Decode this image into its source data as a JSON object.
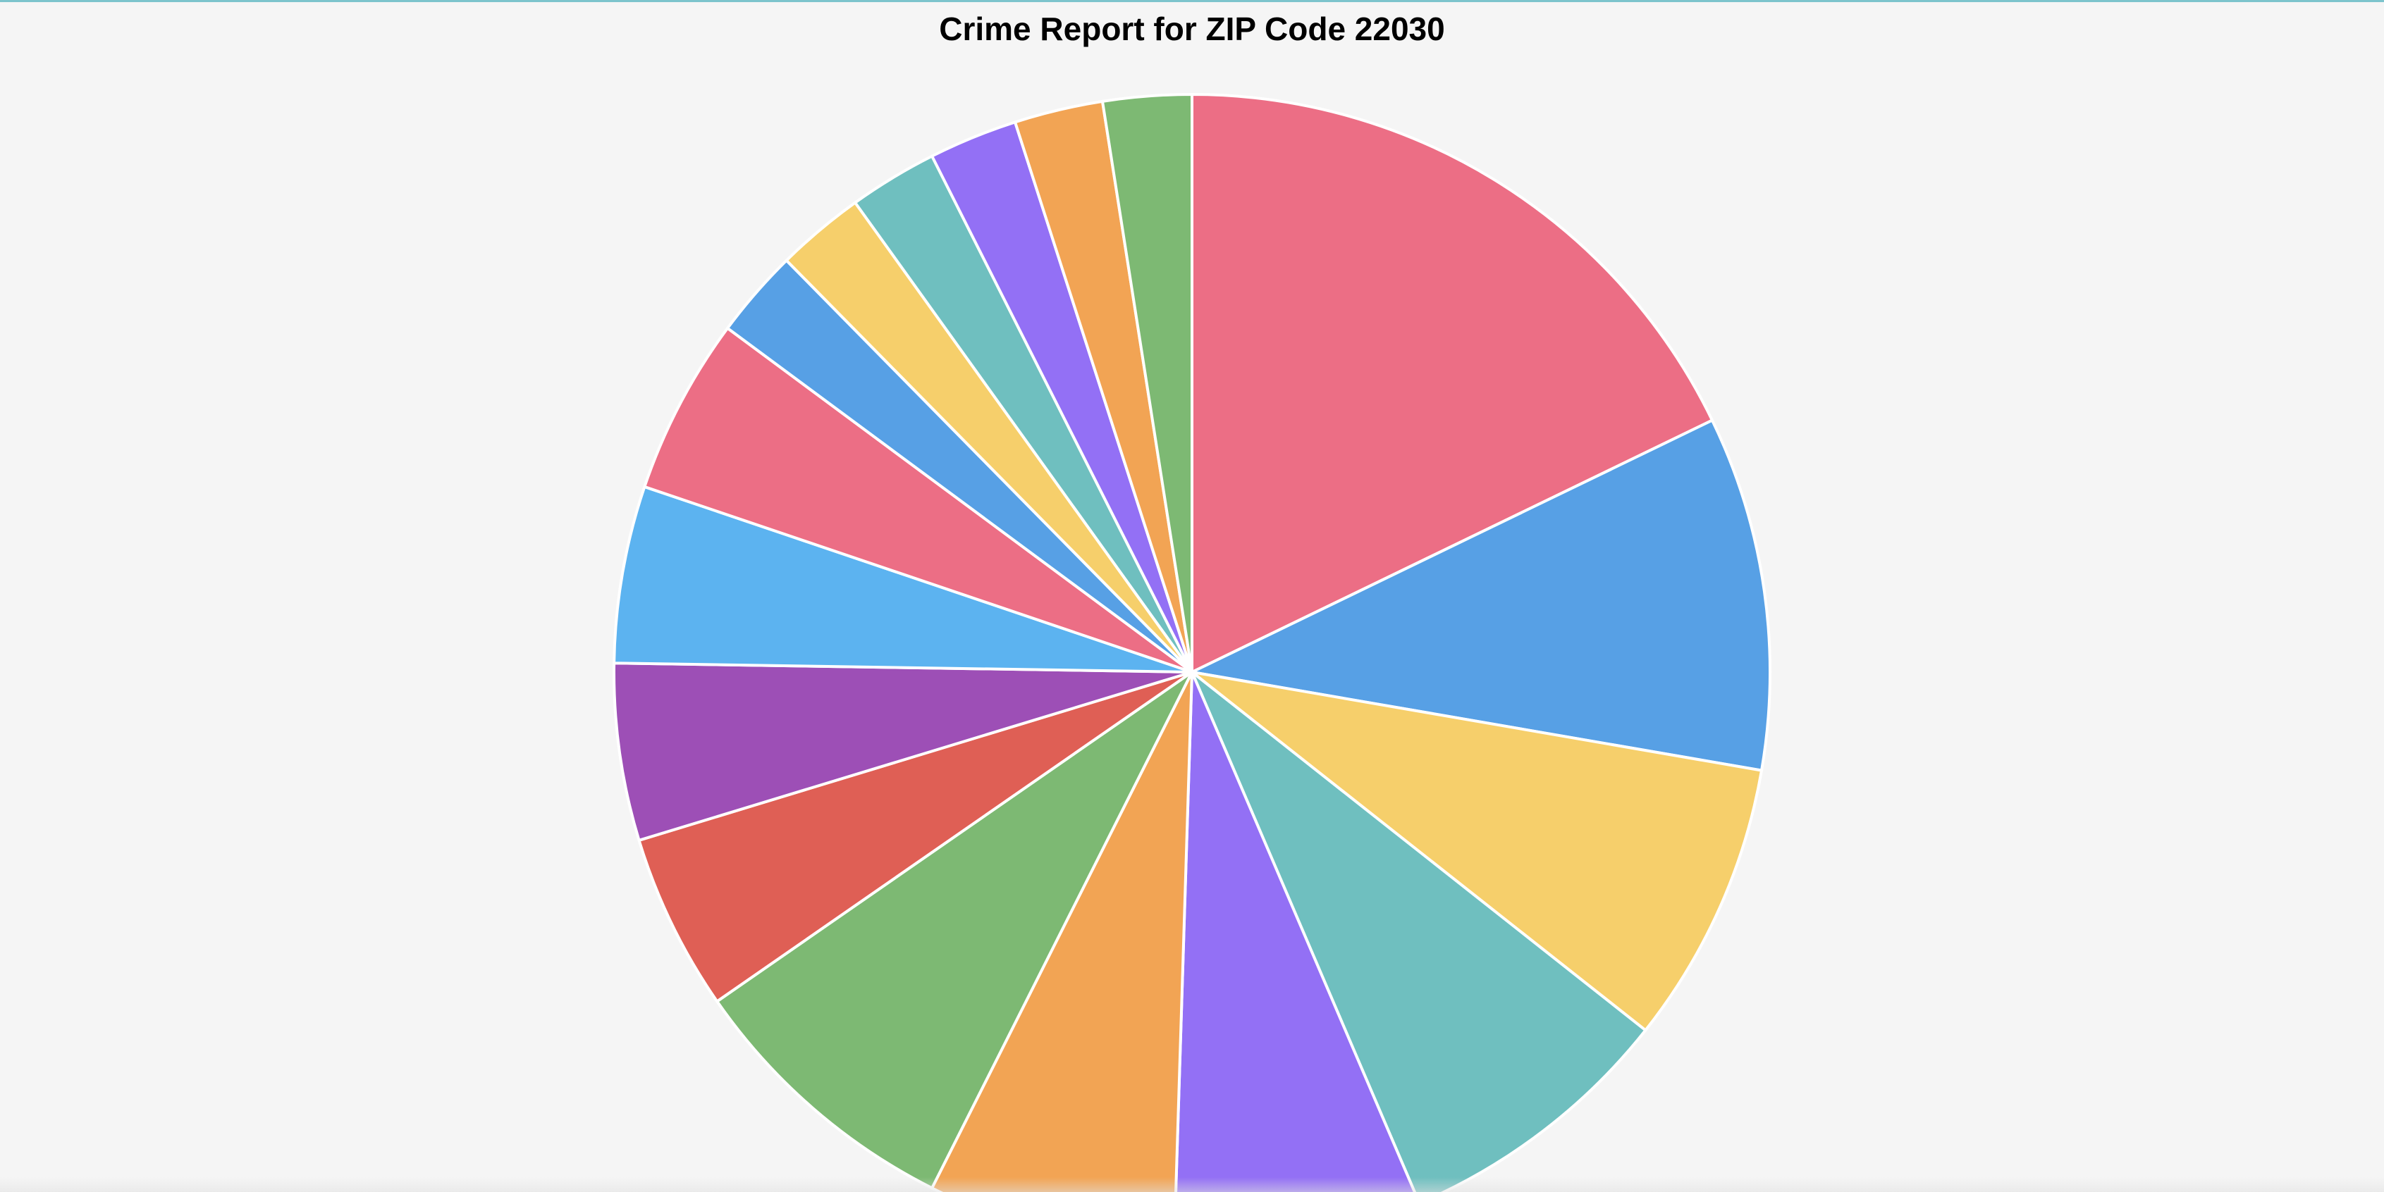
{
  "chart_data": {
    "type": "pie",
    "title": "Crime Report for ZIP Code 22030",
    "start_angle_deg": 0,
    "direction": "clockwise",
    "values": [
      18,
      10,
      8,
      8,
      7,
      7,
      8,
      5,
      5,
      5,
      5,
      2.5,
      2.5,
      2.5,
      2.5,
      2.5,
      2.5
    ],
    "colors": [
      "#ec6e85",
      "#57a0e5",
      "#f6cf6b",
      "#6fbfbf",
      "#9370f5",
      "#f2a454",
      "#7db973",
      "#df5f55",
      "#9d4fb6",
      "#5cb3f0",
      "#ec6e85",
      "#57a0e5",
      "#f6cf6b",
      "#6fbfbf",
      "#9370f5",
      "#f2a454",
      "#7db973"
    ]
  }
}
